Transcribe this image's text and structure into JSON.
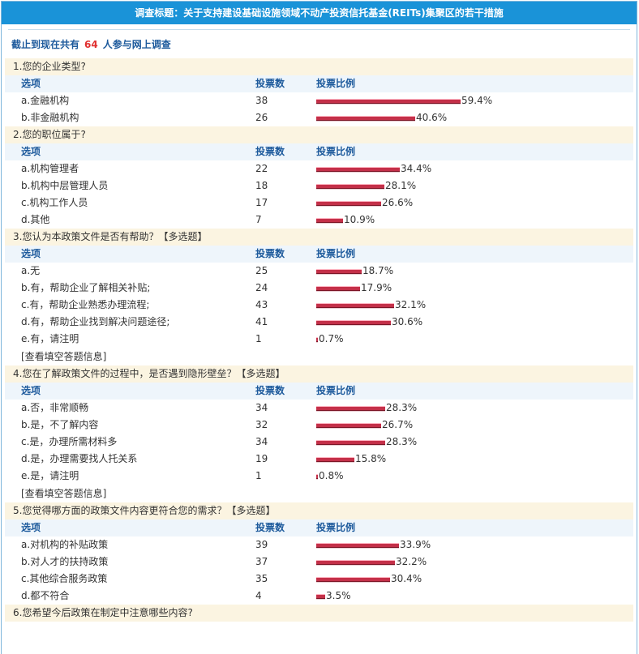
{
  "header": {
    "title": "调查标题：关于支持建设基础设施领域不动产投资信托基金(REITs)集聚区的若干措施"
  },
  "summary": {
    "prefix": "截止到现在共有",
    "count": "64",
    "suffix": "人参与网上调查"
  },
  "columns": {
    "option": "选项",
    "votes": "投票数",
    "ratio": "投票比例"
  },
  "bar_color": "#c43049",
  "questions": [
    {
      "num": "1.",
      "title": "您的企业类型?",
      "options": [
        {
          "label": "a.金融机构",
          "votes": "38",
          "pct": "59.4%",
          "ratio": 0.594
        },
        {
          "label": "b.非金融机构",
          "votes": "26",
          "pct": "40.6%",
          "ratio": 0.406
        }
      ]
    },
    {
      "num": "2.",
      "title": "您的职位属于?",
      "options": [
        {
          "label": "a.机构管理者",
          "votes": "22",
          "pct": "34.4%",
          "ratio": 0.344
        },
        {
          "label": "b.机构中层管理人员",
          "votes": "18",
          "pct": "28.1%",
          "ratio": 0.281
        },
        {
          "label": "c.机构工作人员",
          "votes": "17",
          "pct": "26.6%",
          "ratio": 0.266
        },
        {
          "label": "d.其他",
          "votes": "7",
          "pct": "10.9%",
          "ratio": 0.109
        }
      ]
    },
    {
      "num": "3.",
      "title": "您认为本政策文件是否有帮助？【多选题】",
      "options": [
        {
          "label": "a.无",
          "votes": "25",
          "pct": "18.7%",
          "ratio": 0.187
        },
        {
          "label": "b.有，帮助企业了解相关补贴;",
          "votes": "24",
          "pct": "17.9%",
          "ratio": 0.179
        },
        {
          "label": "c.有，帮助企业熟悉办理流程;",
          "votes": "43",
          "pct": "32.1%",
          "ratio": 0.321
        },
        {
          "label": "d.有，帮助企业找到解决问题途径;",
          "votes": "41",
          "pct": "30.6%",
          "ratio": 0.306
        },
        {
          "label": "e.有，请注明",
          "votes": "1",
          "pct": "0.7%",
          "ratio": 0.007
        }
      ],
      "link": "[查看填空答题信息]"
    },
    {
      "num": "4.",
      "title": "您在了解政策文件的过程中，是否遇到隐形壁垒？【多选题】",
      "options": [
        {
          "label": "a.否，非常顺畅",
          "votes": "34",
          "pct": "28.3%",
          "ratio": 0.283
        },
        {
          "label": "b.是，不了解内容",
          "votes": "32",
          "pct": "26.7%",
          "ratio": 0.267
        },
        {
          "label": "c.是，办理所需材料多",
          "votes": "34",
          "pct": "28.3%",
          "ratio": 0.283
        },
        {
          "label": "d.是，办理需要找人托关系",
          "votes": "19",
          "pct": "15.8%",
          "ratio": 0.158
        },
        {
          "label": "e.是，请注明",
          "votes": "1",
          "pct": "0.8%",
          "ratio": 0.008
        }
      ],
      "link": "[查看填空答题信息]"
    },
    {
      "num": "5.",
      "title": "您觉得哪方面的政策文件内容更符合您的需求？【多选题】",
      "options": [
        {
          "label": "a.对机构的补贴政策",
          "votes": "39",
          "pct": "33.9%",
          "ratio": 0.339
        },
        {
          "label": "b.对人才的扶持政策",
          "votes": "37",
          "pct": "32.2%",
          "ratio": 0.322
        },
        {
          "label": "c.其他综合服务政策",
          "votes": "35",
          "pct": "30.4%",
          "ratio": 0.304
        },
        {
          "label": "d.都不符合",
          "votes": "4",
          "pct": "3.5%",
          "ratio": 0.035
        }
      ]
    },
    {
      "num": "6.",
      "title": "您希望今后政策在制定中注意哪些内容?",
      "options": []
    }
  ]
}
